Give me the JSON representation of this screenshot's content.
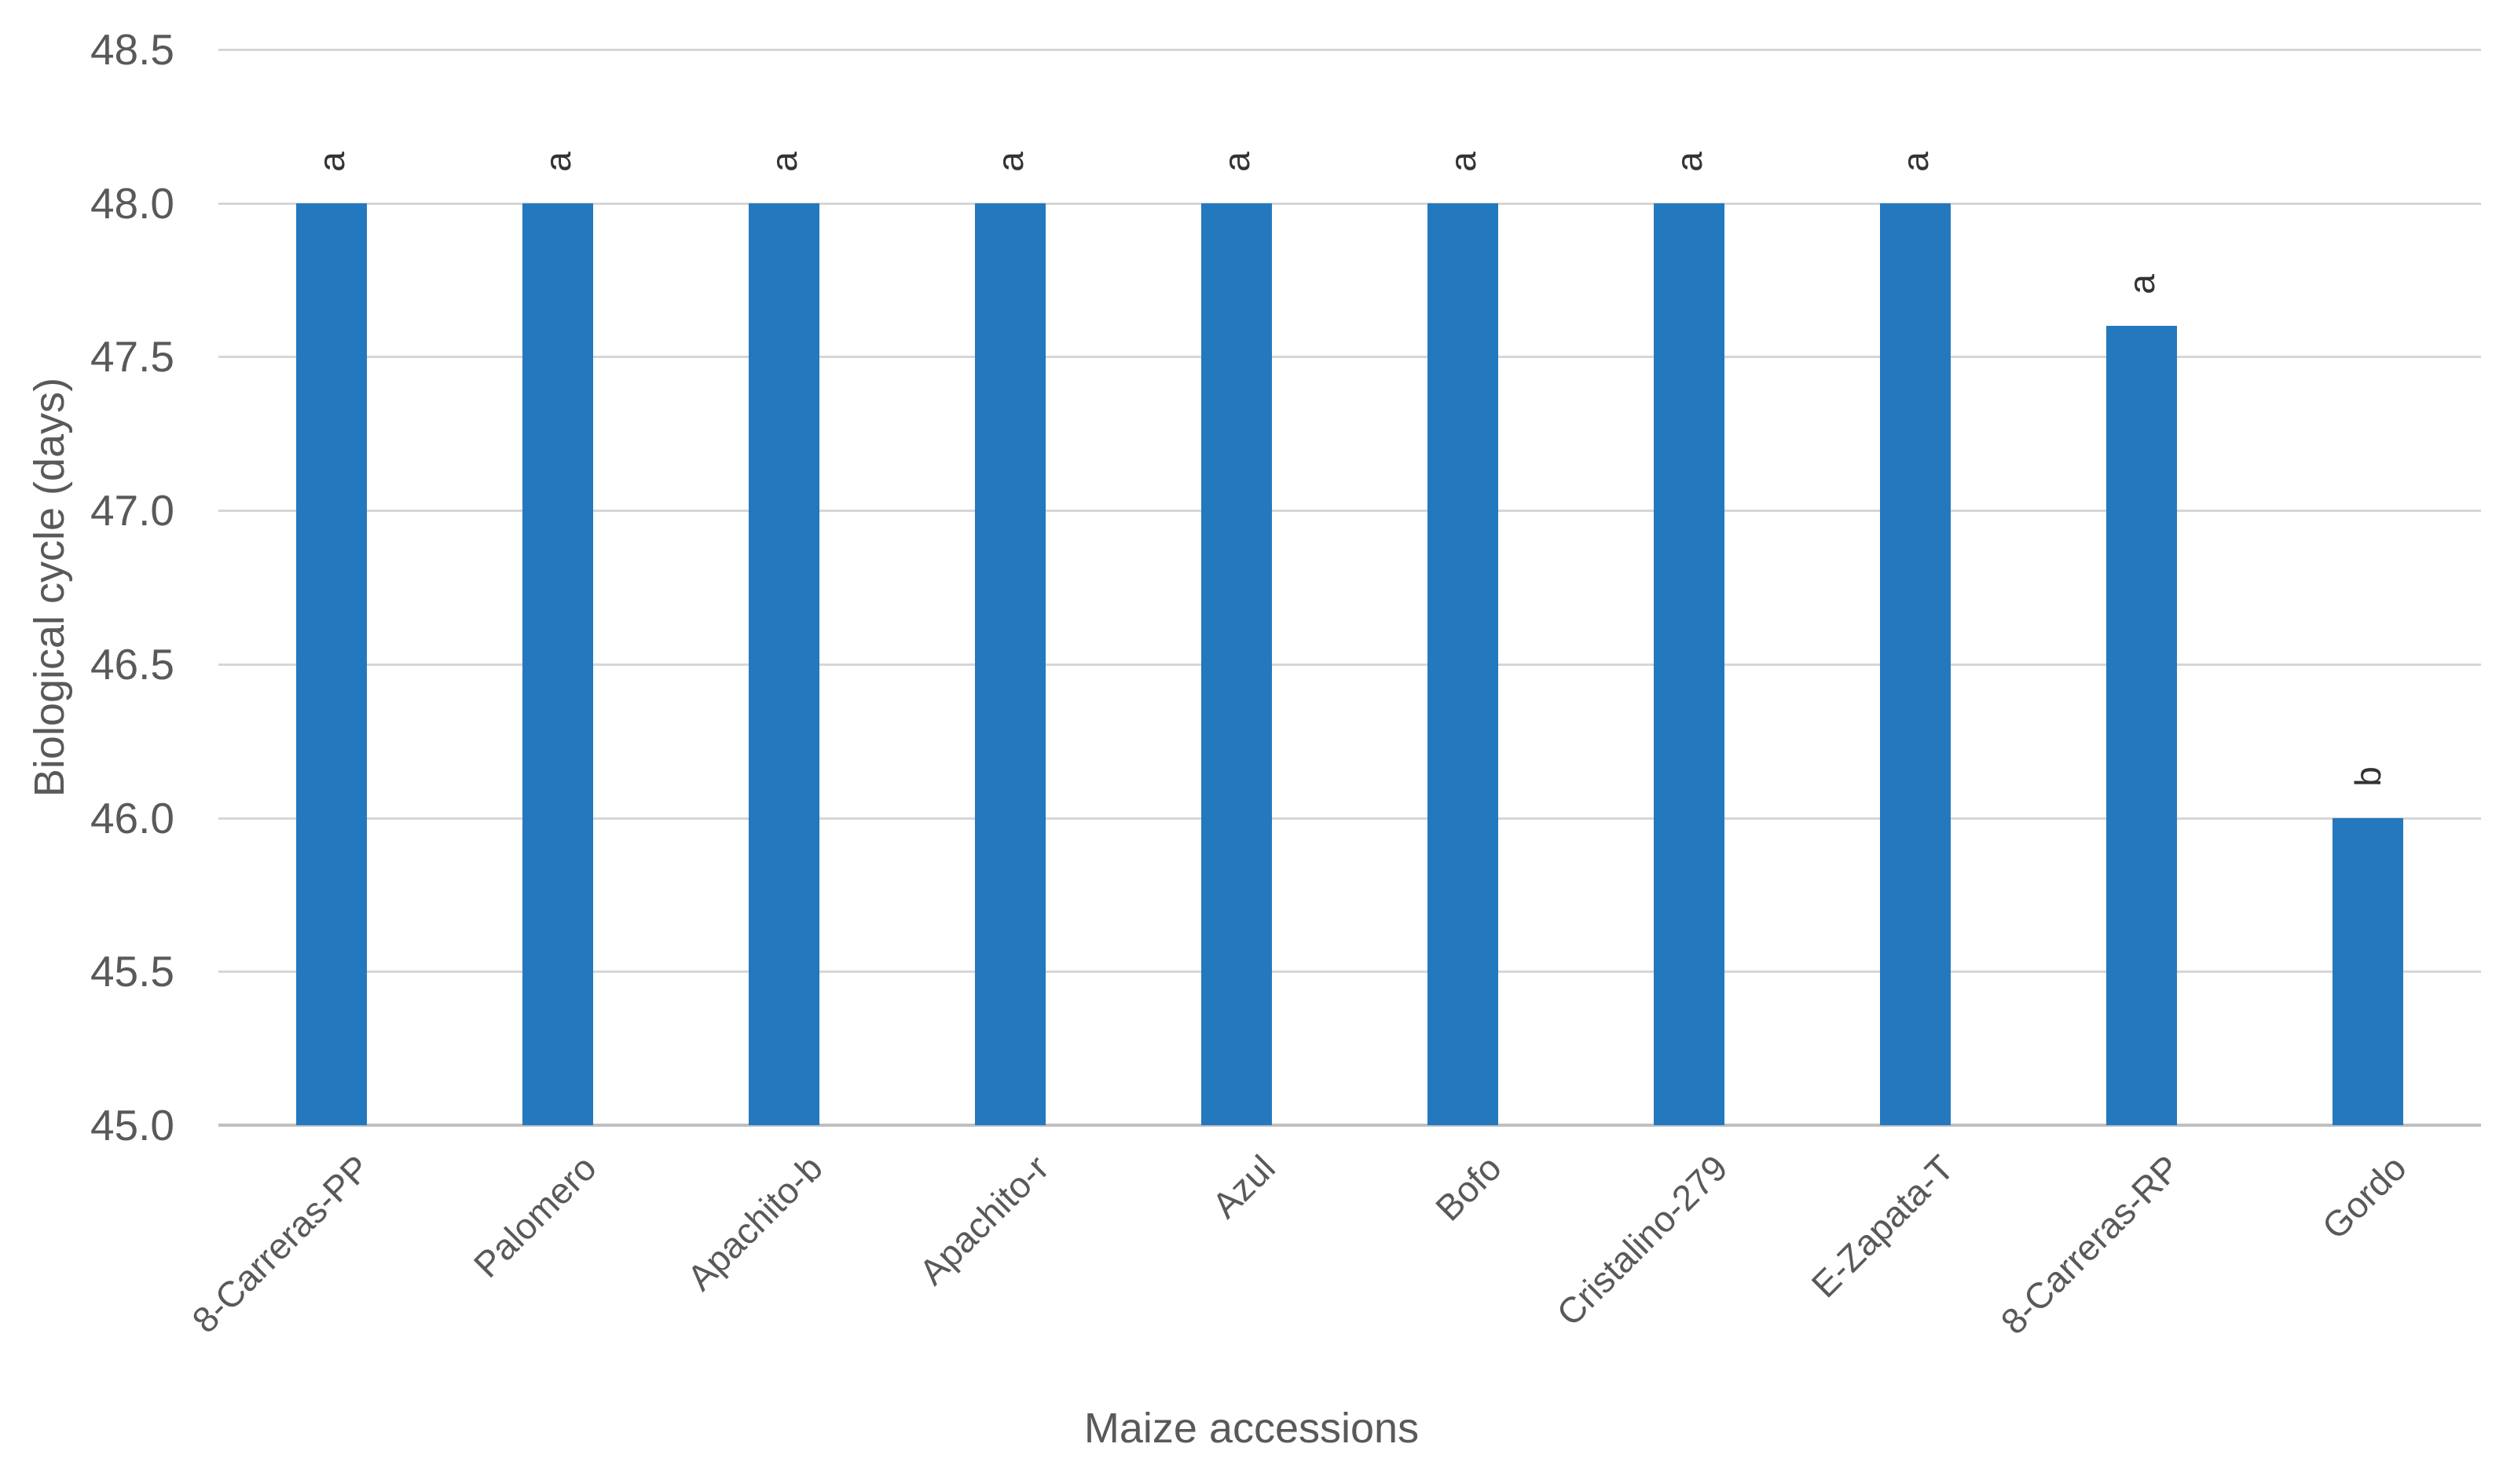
{
  "chart_data": {
    "type": "bar",
    "title": "",
    "xlabel": "Maize accessions",
    "ylabel": "Biological cycle (days)",
    "categories": [
      "8-Carreras-PP",
      "Palomero",
      "Apachito-b",
      "Apachito-r",
      "Azul",
      "Bofo",
      "Cristalino-279",
      "E-Zapata-T",
      "8-Carreras-RP",
      "Gordo"
    ],
    "values": [
      48.0,
      48.0,
      48.0,
      48.0,
      48.0,
      48.0,
      48.0,
      48.0,
      47.6,
      46.0
    ],
    "bar_labels": [
      "a",
      "a",
      "a",
      "a",
      "a",
      "a",
      "a",
      "a",
      "a",
      "b"
    ],
    "ylim": [
      45.0,
      48.5
    ],
    "ytick_labels": [
      "45.0",
      "45.5",
      "46.0",
      "46.5",
      "47.0",
      "47.5",
      "48.0",
      "48.5"
    ],
    "grid": true,
    "legend": "none"
  },
  "style": {
    "bar_color": "#2478BE",
    "gridline_color": "#D6D6D6",
    "axis_line_color": "#BFBFBF",
    "tick_label_color": "#595959",
    "axis_title_color": "#595959",
    "annotation_color": "#333333",
    "background_color": "#FFFFFF"
  }
}
